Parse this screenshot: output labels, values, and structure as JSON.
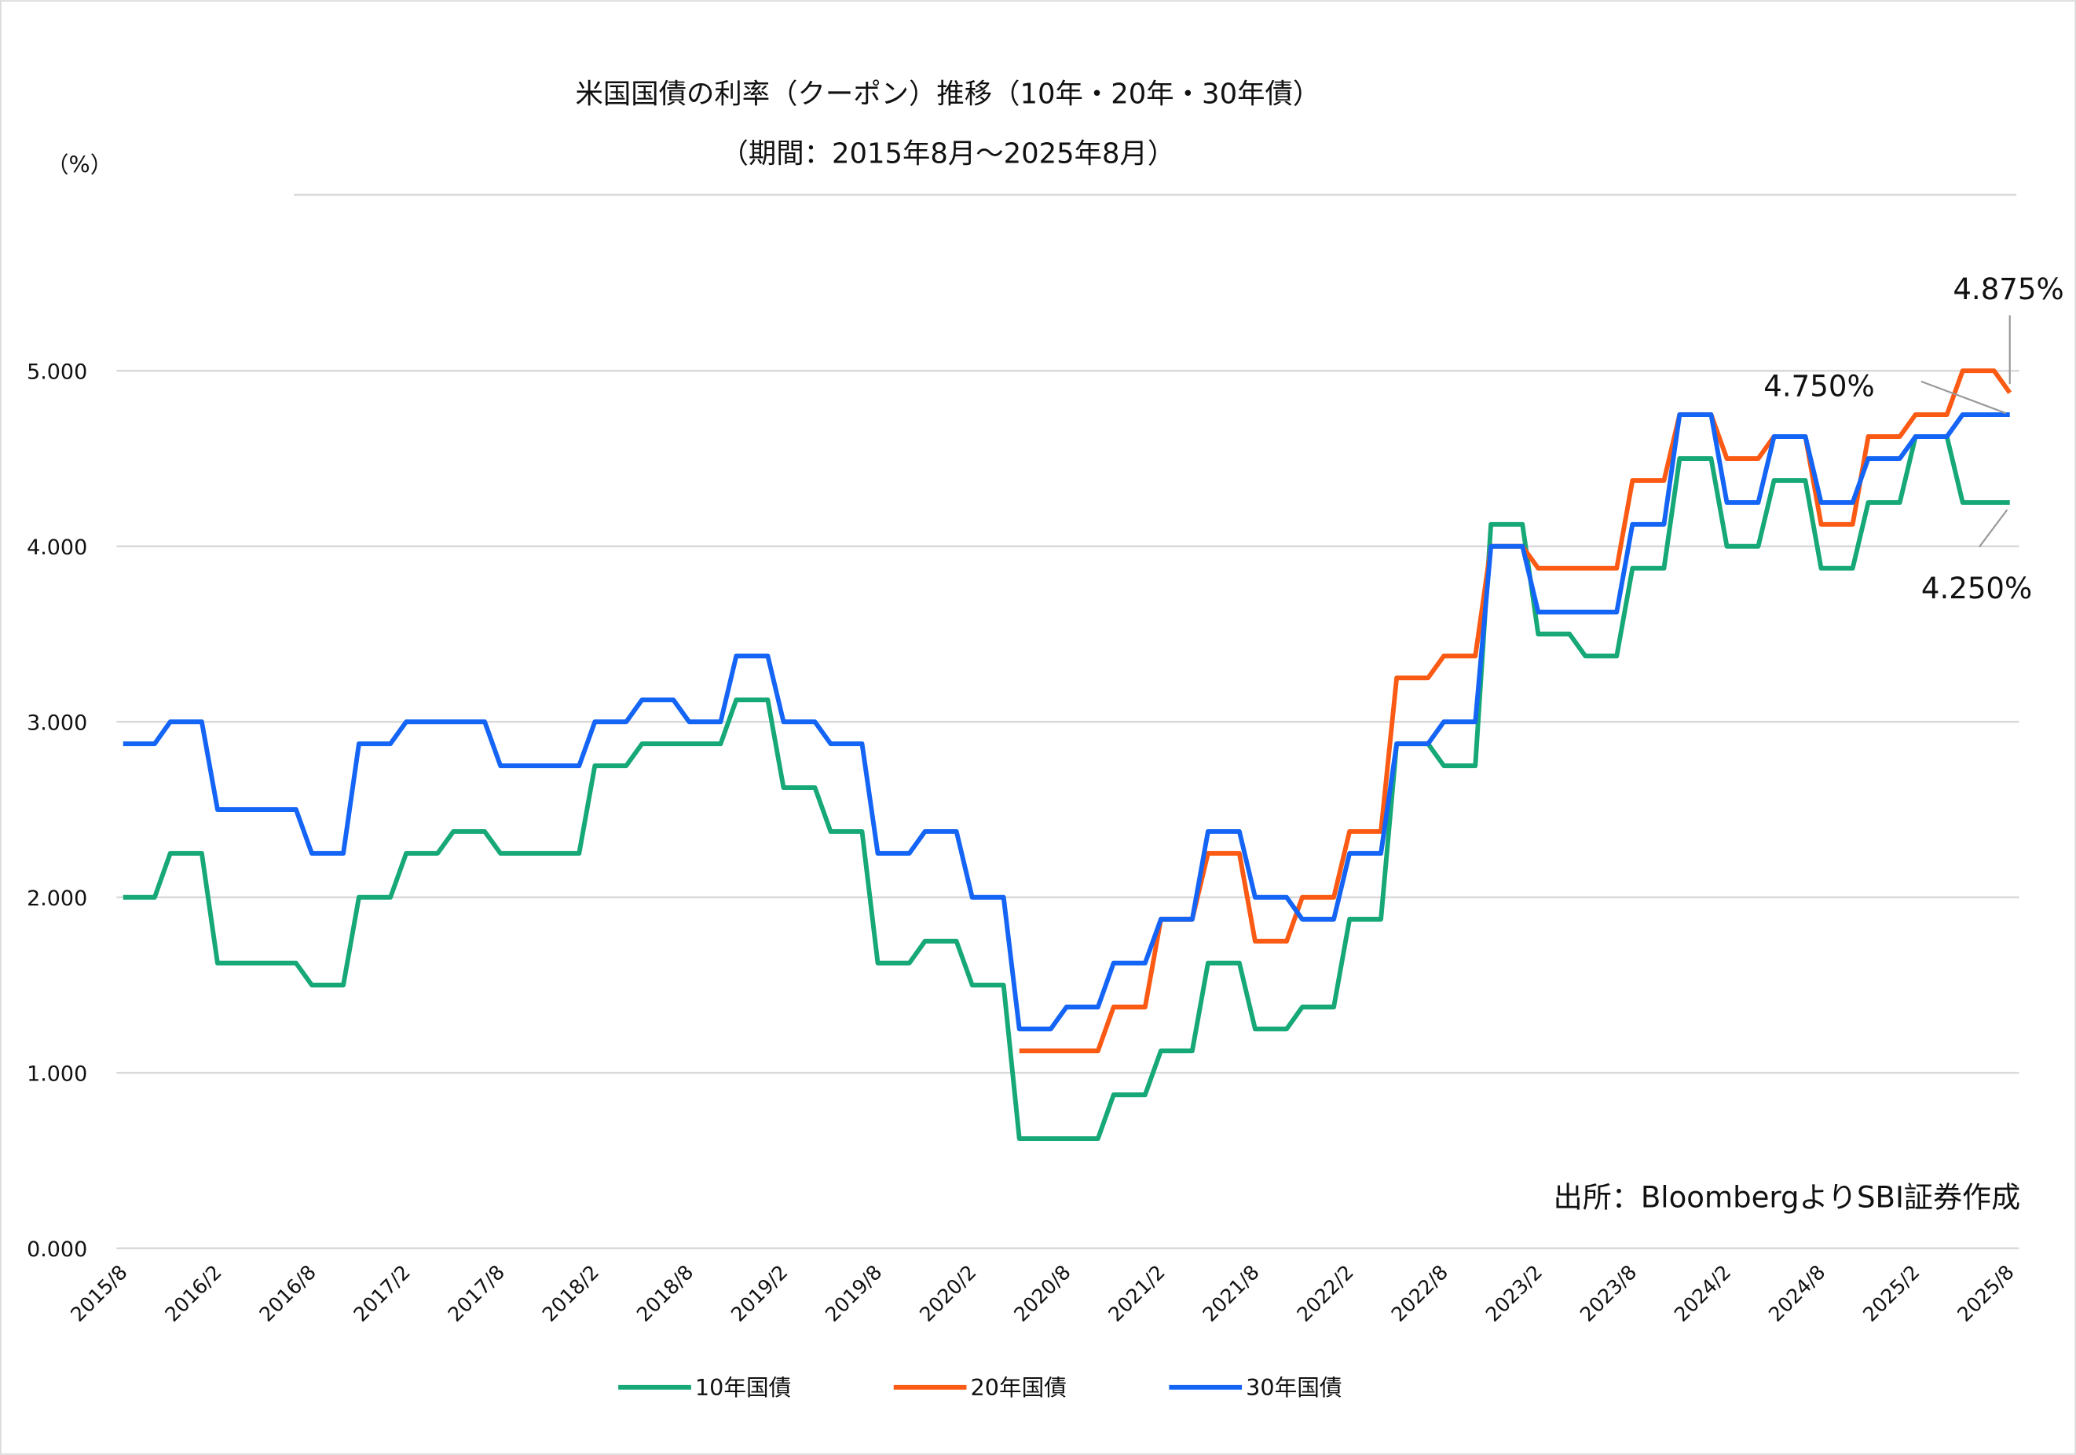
{
  "chart_data": {
    "type": "line",
    "title": "米国国債の利率（クーポン）推移（10年・20年・30年債）",
    "subtitle": "（期間：2015年8月～2025年8月）",
    "ylabel": "（%）",
    "xlabel": "",
    "ylim": [
      0,
      5
    ],
    "grid": true,
    "legend_position": "bottom",
    "source": "出所：BloombergよりSBI証券作成",
    "y_ticks": [
      "0.000",
      "1.000",
      "2.000",
      "3.000",
      "4.000",
      "5.000"
    ],
    "x_tick_labels": [
      "2015/8",
      "2016/2",
      "2016/8",
      "2017/2",
      "2017/8",
      "2018/2",
      "2018/8",
      "2019/2",
      "2019/8",
      "2020/2",
      "2020/8",
      "2021/2",
      "2021/8",
      "2022/2",
      "2022/8",
      "2023/2",
      "2023/8",
      "2024/2",
      "2024/8",
      "2025/2",
      "2025/8"
    ],
    "x_quarters": [
      "2015/8",
      "2015/11",
      "2016/2",
      "2016/5",
      "2016/8",
      "2016/11",
      "2017/2",
      "2017/5",
      "2017/8",
      "2017/11",
      "2018/2",
      "2018/5",
      "2018/8",
      "2018/11",
      "2019/2",
      "2019/5",
      "2019/8",
      "2019/11",
      "2020/2",
      "2020/5",
      "2020/8",
      "2020/11",
      "2021/2",
      "2021/5",
      "2021/8",
      "2021/11",
      "2022/2",
      "2022/5",
      "2022/8",
      "2022/11",
      "2023/2",
      "2023/5",
      "2023/8",
      "2023/11",
      "2024/2",
      "2024/5",
      "2024/8",
      "2024/11",
      "2025/2",
      "2025/5",
      "2025/8"
    ],
    "series": [
      {
        "name": "10年国債",
        "color": "#16a877",
        "values": [
          2.0,
          2.25,
          1.625,
          1.625,
          1.5,
          2.0,
          2.25,
          2.375,
          2.25,
          2.25,
          2.75,
          2.875,
          2.875,
          3.125,
          2.625,
          2.375,
          1.625,
          1.75,
          1.5,
          0.625,
          0.625,
          0.875,
          1.125,
          1.625,
          1.25,
          1.375,
          1.875,
          2.875,
          2.75,
          4.125,
          3.5,
          3.375,
          3.875,
          4.5,
          4.0,
          4.375,
          3.875,
          4.25,
          4.625,
          4.25,
          4.25
        ]
      },
      {
        "name": "20年国債",
        "color": "#fa5a14",
        "values": [
          null,
          null,
          null,
          null,
          null,
          null,
          null,
          null,
          null,
          null,
          null,
          null,
          null,
          null,
          null,
          null,
          null,
          null,
          null,
          1.125,
          1.125,
          1.375,
          1.875,
          2.25,
          1.75,
          2.0,
          2.375,
          3.25,
          3.375,
          4.0,
          3.875,
          3.875,
          4.375,
          4.75,
          4.5,
          4.625,
          4.125,
          4.625,
          4.75,
          5.0,
          4.875
        ]
      },
      {
        "name": "30年国債",
        "color": "#1464f5",
        "values": [
          2.875,
          3.0,
          2.5,
          2.5,
          2.25,
          2.875,
          3.0,
          3.0,
          2.75,
          2.75,
          3.0,
          3.125,
          3.0,
          3.375,
          3.0,
          2.875,
          2.25,
          2.375,
          2.0,
          1.25,
          1.375,
          1.625,
          1.875,
          2.375,
          2.0,
          1.875,
          2.25,
          2.875,
          3.0,
          4.0,
          3.625,
          3.625,
          4.125,
          4.75,
          4.25,
          4.625,
          4.25,
          4.5,
          4.625,
          4.75,
          4.75
        ]
      }
    ],
    "annotations": [
      {
        "text": "4.875%",
        "series": "20年国債",
        "value": 4.875
      },
      {
        "text": "4.750%",
        "series": "30年国債",
        "value": 4.75
      },
      {
        "text": "4.250%",
        "series": "10年国債",
        "value": 4.25
      }
    ]
  }
}
